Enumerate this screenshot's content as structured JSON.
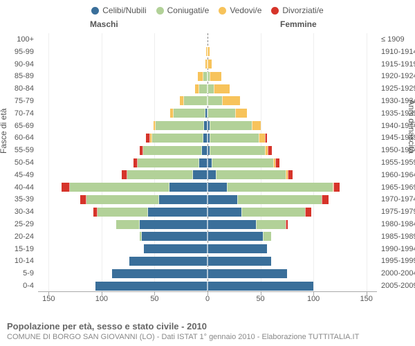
{
  "legend": [
    {
      "label": "Celibi/Nubili",
      "color": "#3a6f9a"
    },
    {
      "label": "Coniugati/e",
      "color": "#b2d198"
    },
    {
      "label": "Vedovi/e",
      "color": "#f7c35b"
    },
    {
      "label": "Divorziati/e",
      "color": "#d6342a"
    }
  ],
  "genders": {
    "m": "Maschi",
    "f": "Femmine"
  },
  "axis": {
    "left_title": "Fasce di età",
    "right_title": "Anni di nascita",
    "xmax": 160,
    "xticks": [
      150,
      100,
      50,
      0,
      50,
      100,
      150
    ],
    "xticklabels": [
      "150",
      "100",
      "50",
      "0",
      "50",
      "100",
      "150"
    ]
  },
  "title": "Popolazione per età, sesso e stato civile - 2010",
  "subtitle": "COMUNE DI BORGO SAN GIOVANNI (LO) - Dati ISTAT 1° gennaio 2010 - Elaborazione TUTTITALIA.IT",
  "colors": {
    "grid": "#eee",
    "axis": "#aaa",
    "center": "#888",
    "text": "#555",
    "title": "#666",
    "subtitle": "#888",
    "bg": "#ffffff"
  },
  "rows": [
    {
      "age": "100+",
      "birth": "≤ 1909",
      "m": [
        0,
        0,
        0,
        0
      ],
      "f": [
        0,
        0,
        0,
        0
      ]
    },
    {
      "age": "95-99",
      "birth": "1910-1914",
      "m": [
        0,
        0,
        1,
        0
      ],
      "f": [
        0,
        0,
        2,
        0
      ]
    },
    {
      "age": "90-94",
      "birth": "1915-1919",
      "m": [
        0,
        0,
        2,
        0
      ],
      "f": [
        0,
        0,
        4,
        0
      ]
    },
    {
      "age": "85-89",
      "birth": "1920-1924",
      "m": [
        0,
        4,
        5,
        0
      ],
      "f": [
        0,
        2,
        11,
        0
      ]
    },
    {
      "age": "80-84",
      "birth": "1925-1929",
      "m": [
        0,
        8,
        4,
        0
      ],
      "f": [
        0,
        6,
        15,
        0
      ]
    },
    {
      "age": "75-79",
      "birth": "1930-1934",
      "m": [
        0,
        22,
        4,
        0
      ],
      "f": [
        0,
        14,
        17,
        0
      ]
    },
    {
      "age": "70-74",
      "birth": "1935-1939",
      "m": [
        2,
        30,
        3,
        0
      ],
      "f": [
        0,
        26,
        11,
        0
      ]
    },
    {
      "age": "65-69",
      "birth": "1940-1944",
      "m": [
        3,
        46,
        2,
        0
      ],
      "f": [
        2,
        40,
        8,
        0
      ]
    },
    {
      "age": "60-64",
      "birth": "1945-1949",
      "m": [
        4,
        48,
        2,
        4
      ],
      "f": [
        2,
        46,
        6,
        2
      ]
    },
    {
      "age": "55-59",
      "birth": "1950-1954",
      "m": [
        5,
        56,
        0,
        3
      ],
      "f": [
        2,
        52,
        3,
        4
      ]
    },
    {
      "age": "50-54",
      "birth": "1955-1959",
      "m": [
        8,
        58,
        0,
        4
      ],
      "f": [
        4,
        58,
        2,
        4
      ]
    },
    {
      "age": "45-49",
      "birth": "1960-1964",
      "m": [
        14,
        62,
        0,
        5
      ],
      "f": [
        8,
        66,
        2,
        4
      ]
    },
    {
      "age": "40-44",
      "birth": "1965-1969",
      "m": [
        36,
        94,
        0,
        8
      ],
      "f": [
        18,
        100,
        1,
        6
      ]
    },
    {
      "age": "35-39",
      "birth": "1970-1974",
      "m": [
        46,
        68,
        0,
        6
      ],
      "f": [
        28,
        80,
        0,
        6
      ]
    },
    {
      "age": "30-34",
      "birth": "1975-1979",
      "m": [
        56,
        48,
        0,
        4
      ],
      "f": [
        32,
        60,
        0,
        6
      ]
    },
    {
      "age": "25-29",
      "birth": "1980-1984",
      "m": [
        64,
        22,
        0,
        0
      ],
      "f": [
        46,
        28,
        0,
        2
      ]
    },
    {
      "age": "20-24",
      "birth": "1985-1989",
      "m": [
        62,
        2,
        0,
        0
      ],
      "f": [
        52,
        8,
        0,
        0
      ]
    },
    {
      "age": "15-19",
      "birth": "1990-1994",
      "m": [
        60,
        0,
        0,
        0
      ],
      "f": [
        56,
        0,
        0,
        0
      ]
    },
    {
      "age": "10-14",
      "birth": "1995-1999",
      "m": [
        74,
        0,
        0,
        0
      ],
      "f": [
        60,
        0,
        0,
        0
      ]
    },
    {
      "age": "5-9",
      "birth": "2000-2004",
      "m": [
        90,
        0,
        0,
        0
      ],
      "f": [
        75,
        0,
        0,
        0
      ]
    },
    {
      "age": "0-4",
      "birth": "2005-2009",
      "m": [
        106,
        0,
        0,
        0
      ],
      "f": [
        100,
        0,
        0,
        0
      ]
    }
  ]
}
